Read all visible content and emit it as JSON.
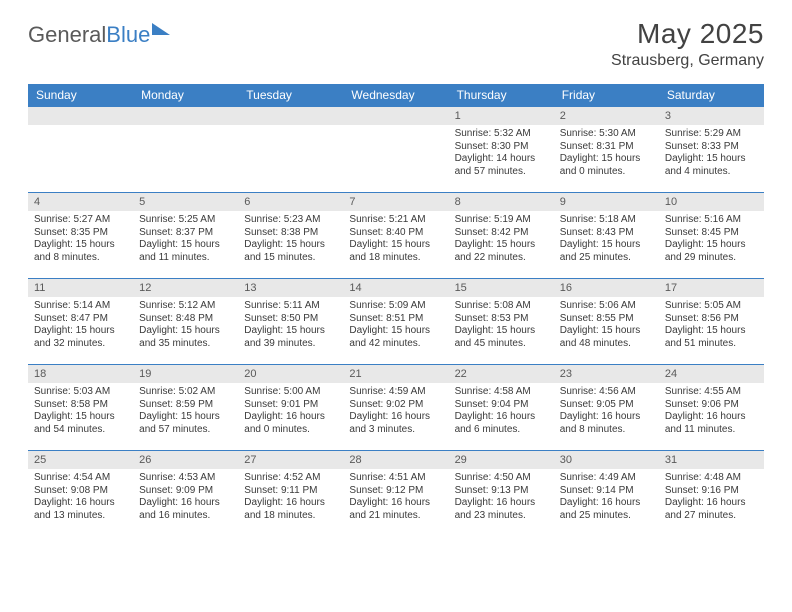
{
  "brand": {
    "part1": "General",
    "part2": "Blue"
  },
  "title": "May 2025",
  "location": "Strausberg, Germany",
  "colors": {
    "header_bg": "#3b7fc4",
    "header_fg": "#ffffff",
    "day_band_bg": "#e8e8e8",
    "rule": "#3b7fc4",
    "text": "#3a3a3a",
    "title_color": "#424242"
  },
  "font": {
    "family": "Arial",
    "th_size_pt": 9,
    "cell_size_pt": 7.5,
    "title_size_pt": 21
  },
  "weekdays": [
    "Sunday",
    "Monday",
    "Tuesday",
    "Wednesday",
    "Thursday",
    "Friday",
    "Saturday"
  ],
  "weeks": [
    [
      {
        "n": "",
        "sunrise": "",
        "sunset": "",
        "daylight": ""
      },
      {
        "n": "",
        "sunrise": "",
        "sunset": "",
        "daylight": ""
      },
      {
        "n": "",
        "sunrise": "",
        "sunset": "",
        "daylight": ""
      },
      {
        "n": "",
        "sunrise": "",
        "sunset": "",
        "daylight": ""
      },
      {
        "n": "1",
        "sunrise": "5:32 AM",
        "sunset": "8:30 PM",
        "daylight": "14 hours and 57 minutes."
      },
      {
        "n": "2",
        "sunrise": "5:30 AM",
        "sunset": "8:31 PM",
        "daylight": "15 hours and 0 minutes."
      },
      {
        "n": "3",
        "sunrise": "5:29 AM",
        "sunset": "8:33 PM",
        "daylight": "15 hours and 4 minutes."
      }
    ],
    [
      {
        "n": "4",
        "sunrise": "5:27 AM",
        "sunset": "8:35 PM",
        "daylight": "15 hours and 8 minutes."
      },
      {
        "n": "5",
        "sunrise": "5:25 AM",
        "sunset": "8:37 PM",
        "daylight": "15 hours and 11 minutes."
      },
      {
        "n": "6",
        "sunrise": "5:23 AM",
        "sunset": "8:38 PM",
        "daylight": "15 hours and 15 minutes."
      },
      {
        "n": "7",
        "sunrise": "5:21 AM",
        "sunset": "8:40 PM",
        "daylight": "15 hours and 18 minutes."
      },
      {
        "n": "8",
        "sunrise": "5:19 AM",
        "sunset": "8:42 PM",
        "daylight": "15 hours and 22 minutes."
      },
      {
        "n": "9",
        "sunrise": "5:18 AM",
        "sunset": "8:43 PM",
        "daylight": "15 hours and 25 minutes."
      },
      {
        "n": "10",
        "sunrise": "5:16 AM",
        "sunset": "8:45 PM",
        "daylight": "15 hours and 29 minutes."
      }
    ],
    [
      {
        "n": "11",
        "sunrise": "5:14 AM",
        "sunset": "8:47 PM",
        "daylight": "15 hours and 32 minutes."
      },
      {
        "n": "12",
        "sunrise": "5:12 AM",
        "sunset": "8:48 PM",
        "daylight": "15 hours and 35 minutes."
      },
      {
        "n": "13",
        "sunrise": "5:11 AM",
        "sunset": "8:50 PM",
        "daylight": "15 hours and 39 minutes."
      },
      {
        "n": "14",
        "sunrise": "5:09 AM",
        "sunset": "8:51 PM",
        "daylight": "15 hours and 42 minutes."
      },
      {
        "n": "15",
        "sunrise": "5:08 AM",
        "sunset": "8:53 PM",
        "daylight": "15 hours and 45 minutes."
      },
      {
        "n": "16",
        "sunrise": "5:06 AM",
        "sunset": "8:55 PM",
        "daylight": "15 hours and 48 minutes."
      },
      {
        "n": "17",
        "sunrise": "5:05 AM",
        "sunset": "8:56 PM",
        "daylight": "15 hours and 51 minutes."
      }
    ],
    [
      {
        "n": "18",
        "sunrise": "5:03 AM",
        "sunset": "8:58 PM",
        "daylight": "15 hours and 54 minutes."
      },
      {
        "n": "19",
        "sunrise": "5:02 AM",
        "sunset": "8:59 PM",
        "daylight": "15 hours and 57 minutes."
      },
      {
        "n": "20",
        "sunrise": "5:00 AM",
        "sunset": "9:01 PM",
        "daylight": "16 hours and 0 minutes."
      },
      {
        "n": "21",
        "sunrise": "4:59 AM",
        "sunset": "9:02 PM",
        "daylight": "16 hours and 3 minutes."
      },
      {
        "n": "22",
        "sunrise": "4:58 AM",
        "sunset": "9:04 PM",
        "daylight": "16 hours and 6 minutes."
      },
      {
        "n": "23",
        "sunrise": "4:56 AM",
        "sunset": "9:05 PM",
        "daylight": "16 hours and 8 minutes."
      },
      {
        "n": "24",
        "sunrise": "4:55 AM",
        "sunset": "9:06 PM",
        "daylight": "16 hours and 11 minutes."
      }
    ],
    [
      {
        "n": "25",
        "sunrise": "4:54 AM",
        "sunset": "9:08 PM",
        "daylight": "16 hours and 13 minutes."
      },
      {
        "n": "26",
        "sunrise": "4:53 AM",
        "sunset": "9:09 PM",
        "daylight": "16 hours and 16 minutes."
      },
      {
        "n": "27",
        "sunrise": "4:52 AM",
        "sunset": "9:11 PM",
        "daylight": "16 hours and 18 minutes."
      },
      {
        "n": "28",
        "sunrise": "4:51 AM",
        "sunset": "9:12 PM",
        "daylight": "16 hours and 21 minutes."
      },
      {
        "n": "29",
        "sunrise": "4:50 AM",
        "sunset": "9:13 PM",
        "daylight": "16 hours and 23 minutes."
      },
      {
        "n": "30",
        "sunrise": "4:49 AM",
        "sunset": "9:14 PM",
        "daylight": "16 hours and 25 minutes."
      },
      {
        "n": "31",
        "sunrise": "4:48 AM",
        "sunset": "9:16 PM",
        "daylight": "16 hours and 27 minutes."
      }
    ]
  ],
  "labels": {
    "sunrise": "Sunrise:",
    "sunset": "Sunset:",
    "daylight": "Daylight:"
  }
}
